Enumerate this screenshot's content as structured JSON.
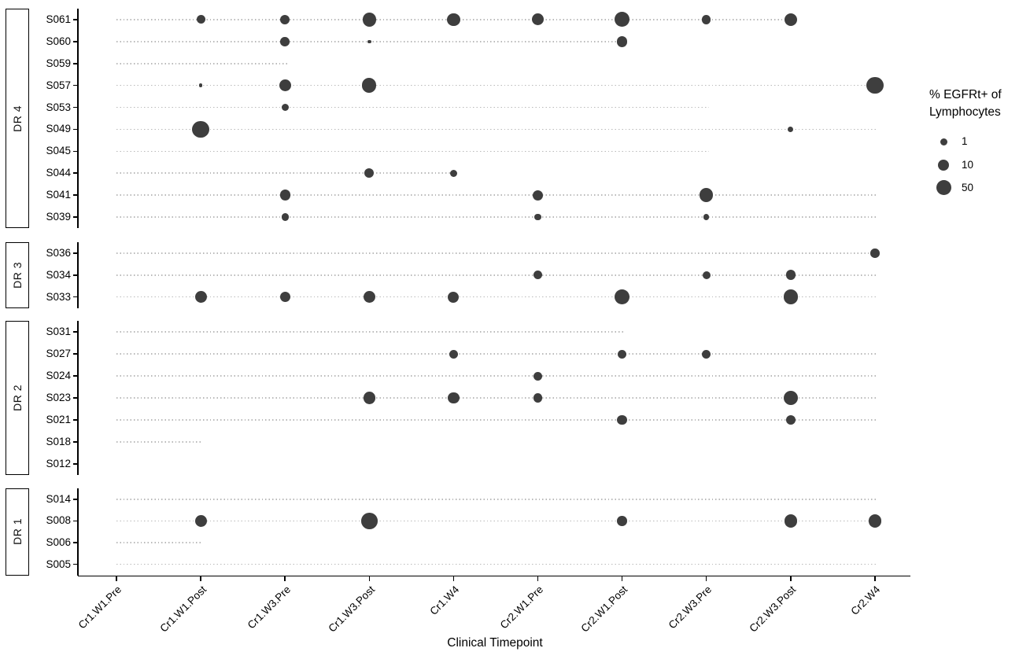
{
  "chart_data": {
    "type": "scatter",
    "description": "Faceted bubble dot-plot: % EGFRt+ of lymphocytes per subject across clinical timepoints; bubble size encodes percent, light dotted line spans timepoints with follow-up",
    "xlabel": "Clinical Timepoint",
    "x_categories": [
      "Cr1.W1.Pre",
      "Cr1.W1.Post",
      "Cr1.W3.Pre",
      "Cr1.W3.Post",
      "Cr1.W4",
      "Cr2.W1.Pre",
      "Cr2.W1.Post",
      "Cr2.W3.Pre",
      "Cr2.W3.Post",
      "Cr2.W4"
    ],
    "size_legend": {
      "title_line1": "% EGFRt+ of",
      "title_line2": "Lymphocytes",
      "items": [
        {
          "label": "1",
          "value": 1,
          "r": 4.5
        },
        {
          "label": "10",
          "value": 10,
          "r": 7
        },
        {
          "label": "50",
          "value": 50,
          "r": 9.5
        }
      ]
    },
    "groups": [
      {
        "name": "DR 4",
        "rows": [
          {
            "id": "S061",
            "line_to": "Cr2.W3.Post",
            "points": [
              {
                "t": "Cr1.W1.Post",
                "pct": 2.7,
                "r": 5.5
              },
              {
                "t": "Cr1.W3.Pre",
                "pct": 4.8,
                "r": 6.2
              },
              {
                "t": "Cr1.W3.Post",
                "pct": 35,
                "r": 8.7
              },
              {
                "t": "Cr1.W4",
                "pct": 26,
                "r": 8.3
              },
              {
                "t": "Cr2.W1.Pre",
                "pct": 15,
                "r": 7.5
              },
              {
                "t": "Cr2.W1.Post",
                "pct": 50,
                "r": 9.5
              },
              {
                "t": "Cr2.W3.Pre",
                "pct": 3.5,
                "r": 5.8
              },
              {
                "t": "Cr2.W3.Post",
                "pct": 26,
                "r": 8.1
              }
            ]
          },
          {
            "id": "S060",
            "line_to": "Cr2.W1.Post",
            "points": [
              {
                "t": "Cr1.W3.Pre",
                "pct": 3.5,
                "r": 5.8
              },
              {
                "t": "Cr1.W3.Post",
                "pct": 0.1,
                "r": 2.3
              },
              {
                "t": "Cr2.W1.Post",
                "pct": 7.5,
                "r": 6.7
              }
            ]
          },
          {
            "id": "S059",
            "line_to": "Cr1.W3.Pre",
            "points": []
          },
          {
            "id": "S057",
            "line_to": "Cr2.W4",
            "points": [
              {
                "t": "Cr1.W1.Post",
                "pct": 0.1,
                "r": 2.3
              },
              {
                "t": "Cr1.W3.Pre",
                "pct": 15,
                "r": 7.5
              },
              {
                "t": "Cr1.W3.Post",
                "pct": 44,
                "r": 9.2
              },
              {
                "t": "Cr2.W4",
                "pct": 85,
                "r": 10.8
              }
            ]
          },
          {
            "id": "S053",
            "line_to": "Cr2.W3.Pre",
            "points": [
              {
                "t": "Cr1.W3.Pre",
                "pct": 1.2,
                "r": 4.7
              }
            ]
          },
          {
            "id": "S049",
            "line_to": "Cr2.W4",
            "points": [
              {
                "t": "Cr1.W1.Post",
                "pct": 85,
                "r": 10.8
              },
              {
                "t": "Cr2.W3.Post",
                "pct": 0.6,
                "r": 3.7
              }
            ]
          },
          {
            "id": "S045",
            "line_to": "Cr2.W3.Pre",
            "points": []
          },
          {
            "id": "S044",
            "line_to": "Cr1.W4",
            "points": [
              {
                "t": "Cr1.W3.Post",
                "pct": 4.8,
                "r": 6.2
              },
              {
                "t": "Cr1.W4",
                "pct": 1,
                "r": 4.5
              }
            ]
          },
          {
            "id": "S041",
            "line_to": "Cr2.W4",
            "points": [
              {
                "t": "Cr1.W3.Pre",
                "pct": 7.5,
                "r": 6.7
              },
              {
                "t": "Cr2.W1.Pre",
                "pct": 6,
                "r": 6.5
              },
              {
                "t": "Cr2.W3.Pre",
                "pct": 37,
                "r": 8.8
              }
            ]
          },
          {
            "id": "S039",
            "line_to": "Cr2.W4",
            "points": [
              {
                "t": "Cr1.W3.Pre",
                "pct": 1.2,
                "r": 4.7
              },
              {
                "t": "Cr2.W1.Pre",
                "pct": 0.8,
                "r": 4.2
              },
              {
                "t": "Cr2.W3.Pre",
                "pct": 0.6,
                "r": 3.7
              }
            ]
          }
        ]
      },
      {
        "name": "DR 3",
        "rows": [
          {
            "id": "S036",
            "line_to": "Cr2.W4",
            "points": [
              {
                "t": "Cr2.W4",
                "pct": 3.5,
                "r": 5.8
              }
            ]
          },
          {
            "id": "S034",
            "line_to": "Cr2.W4",
            "points": [
              {
                "t": "Cr2.W1.Pre",
                "pct": 2.7,
                "r": 5.5
              },
              {
                "t": "Cr2.W3.Pre",
                "pct": 1.7,
                "r": 5
              },
              {
                "t": "Cr2.W3.Post",
                "pct": 5,
                "r": 6.3
              }
            ]
          },
          {
            "id": "S033",
            "line_to": "Cr2.W4",
            "points": [
              {
                "t": "Cr1.W1.Post",
                "pct": 15,
                "r": 7.5
              },
              {
                "t": "Cr1.W3.Pre",
                "pct": 7.5,
                "r": 6.7
              },
              {
                "t": "Cr1.W3.Post",
                "pct": 19,
                "r": 7.8
              },
              {
                "t": "Cr1.W4",
                "pct": 10,
                "r": 7
              },
              {
                "t": "Cr2.W1.Post",
                "pct": 50,
                "r": 9.5
              },
              {
                "t": "Cr2.W3.Post",
                "pct": 44,
                "r": 9.2
              }
            ]
          }
        ]
      },
      {
        "name": "DR 2",
        "rows": [
          {
            "id": "S031",
            "line_to": "Cr2.W1.Post",
            "points": []
          },
          {
            "id": "S027",
            "line_to": "Cr2.W4",
            "points": [
              {
                "t": "Cr1.W4",
                "pct": 2.7,
                "r": 5.5
              },
              {
                "t": "Cr2.W1.Post",
                "pct": 2.7,
                "r": 5.5
              },
              {
                "t": "Cr2.W3.Pre",
                "pct": 2.7,
                "r": 5.5
              }
            ]
          },
          {
            "id": "S024",
            "line_to": "Cr2.W4",
            "points": [
              {
                "t": "Cr2.W1.Pre",
                "pct": 2.7,
                "r": 5.5
              }
            ]
          },
          {
            "id": "S023",
            "line_to": "Cr2.W4",
            "points": [
              {
                "t": "Cr1.W3.Post",
                "pct": 19,
                "r": 7.8
              },
              {
                "t": "Cr1.W4",
                "pct": 13,
                "r": 7.3
              },
              {
                "t": "Cr2.W1.Pre",
                "pct": 3.5,
                "r": 5.8
              },
              {
                "t": "Cr2.W3.Post",
                "pct": 46,
                "r": 9.3
              }
            ]
          },
          {
            "id": "S021",
            "line_to": "Cr2.W4",
            "points": [
              {
                "t": "Cr2.W1.Post",
                "pct": 5,
                "r": 6.3
              },
              {
                "t": "Cr2.W3.Post",
                "pct": 5,
                "r": 6.3
              }
            ]
          },
          {
            "id": "S018",
            "line_to": "Cr1.W1.Post",
            "points": []
          },
          {
            "id": "S012",
            "line_to": null,
            "points": []
          }
        ]
      },
      {
        "name": "DR 1",
        "rows": [
          {
            "id": "S014",
            "line_to": "Cr2.W4",
            "points": []
          },
          {
            "id": "S008",
            "line_to": "Cr2.W4",
            "points": [
              {
                "t": "Cr1.W1.Post",
                "pct": 15,
                "r": 7.5
              },
              {
                "t": "Cr1.W3.Post",
                "pct": 70,
                "r": 10.3
              },
              {
                "t": "Cr2.W1.Post",
                "pct": 4.8,
                "r": 6.2
              },
              {
                "t": "Cr2.W3.Post",
                "pct": 26,
                "r": 8.3
              },
              {
                "t": "Cr2.W4",
                "pct": 26,
                "r": 8.3
              }
            ]
          },
          {
            "id": "S006",
            "line_to": "Cr1.W1.Post",
            "points": []
          },
          {
            "id": "S005",
            "line_to": "Cr2.W4",
            "points": []
          }
        ]
      }
    ]
  },
  "colors": {
    "dot": "#3e3e3e",
    "dotted_line": "#b9b9b9",
    "axis": "#000000",
    "text": "#000000"
  }
}
